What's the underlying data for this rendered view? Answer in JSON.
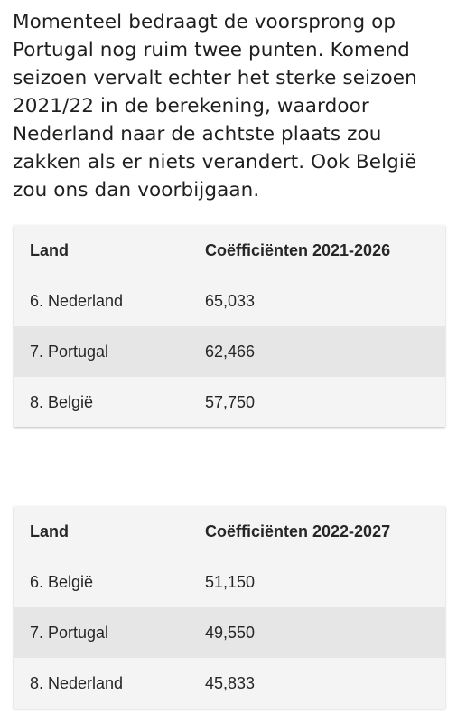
{
  "article": {
    "intro": "Momenteel bedraagt de voorsprong op Portugal nog ruim twee punten. Komend seizoen vervalt echter het sterke seizoen 2021/22 in de berekening, waardoor Nederland naar de achtste plaats zou zakken als er niets verandert. Ook België zou ons dan voorbijgaan."
  },
  "tables": [
    {
      "headers": [
        "Land",
        "Coëfficiënten 2021-2026"
      ],
      "rows": [
        [
          "6. Nederland",
          "65,033"
        ],
        [
          "7. Portugal",
          "62,466"
        ],
        [
          "8. België",
          "57,750"
        ]
      ]
    },
    {
      "headers": [
        "Land",
        "Coëfficiënten 2022-2027"
      ],
      "rows": [
        [
          "6. België",
          "51,150"
        ],
        [
          "7. Portugal",
          "49,550"
        ],
        [
          "8. Nederland",
          "45,833"
        ]
      ]
    }
  ],
  "colors": {
    "table_background": "#f4f4f4",
    "table_alt_row": "#e6e6e6",
    "text": "#222222"
  }
}
